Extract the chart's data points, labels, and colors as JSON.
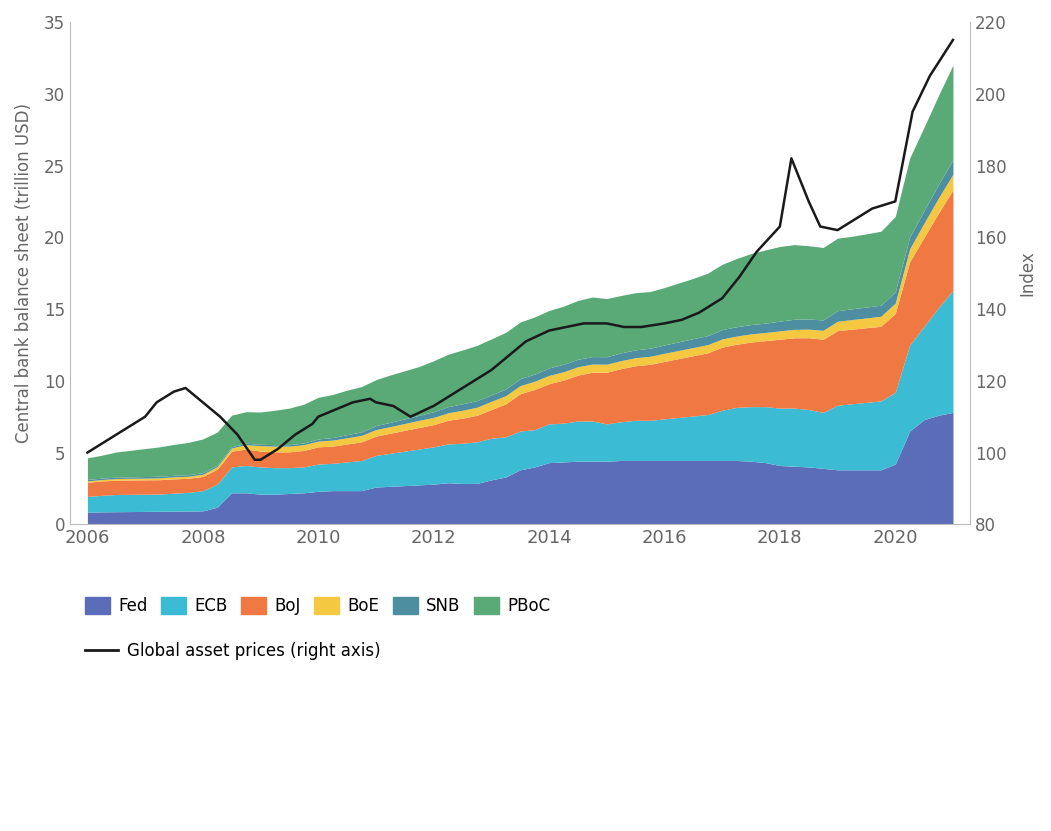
{
  "ylabel_left": "Central bank balance sheet (trillion USD)",
  "ylabel_right": "Index",
  "ylim_left": [
    0,
    35
  ],
  "ylim_right": [
    80,
    220
  ],
  "yticks_left": [
    0,
    5,
    10,
    15,
    20,
    25,
    30,
    35
  ],
  "yticks_right": [
    80,
    100,
    120,
    140,
    160,
    180,
    200,
    220
  ],
  "colors": {
    "Fed": "#5b6db8",
    "ECB": "#3bbcd4",
    "BoJ": "#f07843",
    "BoE": "#f5c842",
    "SNB": "#4d8fa0",
    "PBoC": "#5aaa78"
  },
  "line_color": "#1a1a1a",
  "years": [
    2006.0,
    2006.25,
    2006.5,
    2006.75,
    2007.0,
    2007.25,
    2007.5,
    2007.75,
    2008.0,
    2008.25,
    2008.5,
    2008.75,
    2009.0,
    2009.25,
    2009.5,
    2009.75,
    2010.0,
    2010.25,
    2010.5,
    2010.75,
    2011.0,
    2011.25,
    2011.5,
    2011.75,
    2012.0,
    2012.25,
    2012.5,
    2012.75,
    2013.0,
    2013.25,
    2013.5,
    2013.75,
    2014.0,
    2014.25,
    2014.5,
    2014.75,
    2015.0,
    2015.25,
    2015.5,
    2015.75,
    2016.0,
    2016.25,
    2016.5,
    2016.75,
    2017.0,
    2017.25,
    2017.5,
    2017.75,
    2018.0,
    2018.25,
    2018.5,
    2018.75,
    2019.0,
    2019.25,
    2019.5,
    2019.75,
    2020.0,
    2020.25,
    2020.5,
    2020.75,
    2021.0
  ],
  "Fed": [
    0.85,
    0.87,
    0.88,
    0.89,
    0.9,
    0.91,
    0.92,
    0.93,
    0.94,
    1.2,
    2.2,
    2.2,
    2.1,
    2.1,
    2.15,
    2.2,
    2.3,
    2.35,
    2.35,
    2.35,
    2.6,
    2.65,
    2.7,
    2.75,
    2.8,
    2.9,
    2.85,
    2.85,
    3.1,
    3.3,
    3.8,
    4.0,
    4.3,
    4.35,
    4.4,
    4.4,
    4.4,
    4.45,
    4.45,
    4.45,
    4.45,
    4.45,
    4.45,
    4.45,
    4.45,
    4.45,
    4.4,
    4.3,
    4.1,
    4.05,
    4.0,
    3.9,
    3.8,
    3.8,
    3.8,
    3.8,
    4.2,
    6.5,
    7.3,
    7.6,
    7.8
  ],
  "ECB": [
    1.1,
    1.15,
    1.2,
    1.2,
    1.2,
    1.2,
    1.25,
    1.3,
    1.4,
    1.6,
    1.8,
    1.9,
    1.9,
    1.85,
    1.8,
    1.8,
    1.9,
    1.9,
    2.0,
    2.1,
    2.2,
    2.3,
    2.4,
    2.5,
    2.6,
    2.7,
    2.8,
    2.9,
    2.9,
    2.8,
    2.7,
    2.6,
    2.7,
    2.7,
    2.8,
    2.8,
    2.6,
    2.7,
    2.8,
    2.8,
    2.9,
    3.0,
    3.1,
    3.2,
    3.5,
    3.7,
    3.8,
    3.9,
    4.0,
    4.05,
    4.0,
    3.9,
    4.5,
    4.6,
    4.7,
    4.8,
    5.0,
    6.0,
    6.5,
    7.5,
    8.5
  ],
  "BoJ": [
    0.98,
    1.0,
    1.0,
    1.0,
    1.0,
    1.0,
    1.0,
    0.98,
    1.0,
    1.05,
    1.1,
    1.15,
    1.1,
    1.1,
    1.1,
    1.15,
    1.2,
    1.2,
    1.25,
    1.3,
    1.35,
    1.4,
    1.45,
    1.5,
    1.55,
    1.65,
    1.75,
    1.85,
    2.0,
    2.3,
    2.6,
    2.8,
    2.8,
    3.0,
    3.2,
    3.4,
    3.6,
    3.7,
    3.8,
    3.9,
    4.0,
    4.1,
    4.2,
    4.3,
    4.4,
    4.4,
    4.5,
    4.6,
    4.8,
    4.9,
    5.0,
    5.1,
    5.2,
    5.2,
    5.2,
    5.2,
    5.5,
    5.8,
    6.2,
    6.6,
    7.0
  ],
  "BoE": [
    0.1,
    0.1,
    0.11,
    0.12,
    0.12,
    0.13,
    0.14,
    0.14,
    0.15,
    0.18,
    0.22,
    0.3,
    0.38,
    0.4,
    0.4,
    0.4,
    0.4,
    0.42,
    0.43,
    0.45,
    0.45,
    0.46,
    0.48,
    0.5,
    0.5,
    0.52,
    0.55,
    0.56,
    0.57,
    0.57,
    0.57,
    0.57,
    0.58,
    0.58,
    0.58,
    0.57,
    0.56,
    0.56,
    0.56,
    0.56,
    0.57,
    0.57,
    0.57,
    0.57,
    0.57,
    0.57,
    0.57,
    0.57,
    0.58,
    0.59,
    0.6,
    0.62,
    0.65,
    0.67,
    0.68,
    0.7,
    0.72,
    0.9,
    1.0,
    1.05,
    1.1
  ],
  "SNB": [
    0.1,
    0.1,
    0.1,
    0.1,
    0.11,
    0.11,
    0.11,
    0.11,
    0.11,
    0.1,
    0.09,
    0.1,
    0.1,
    0.1,
    0.1,
    0.12,
    0.15,
    0.18,
    0.22,
    0.25,
    0.28,
    0.3,
    0.32,
    0.35,
    0.4,
    0.43,
    0.45,
    0.46,
    0.45,
    0.46,
    0.48,
    0.5,
    0.52,
    0.52,
    0.52,
    0.52,
    0.52,
    0.54,
    0.55,
    0.56,
    0.58,
    0.6,
    0.62,
    0.63,
    0.65,
    0.65,
    0.65,
    0.65,
    0.68,
    0.7,
    0.71,
    0.72,
    0.74,
    0.75,
    0.76,
    0.77,
    0.78,
    0.82,
    0.88,
    0.94,
    1.0
  ],
  "PBoC": [
    1.5,
    1.6,
    1.75,
    1.85,
    1.95,
    2.05,
    2.15,
    2.25,
    2.35,
    2.3,
    2.2,
    2.2,
    2.25,
    2.4,
    2.55,
    2.7,
    2.9,
    3.0,
    3.1,
    3.15,
    3.2,
    3.3,
    3.35,
    3.4,
    3.55,
    3.65,
    3.75,
    3.85,
    3.9,
    3.95,
    3.95,
    3.98,
    4.0,
    4.05,
    4.1,
    4.15,
    4.05,
    4.0,
    3.98,
    3.95,
    4.0,
    4.1,
    4.2,
    4.35,
    4.55,
    4.75,
    4.95,
    5.1,
    5.2,
    5.2,
    5.1,
    5.05,
    5.05,
    5.05,
    5.1,
    5.15,
    5.25,
    5.5,
    5.8,
    6.2,
    6.6
  ],
  "gap_years": [
    2006.0,
    2006.3,
    2006.6,
    2007.0,
    2007.2,
    2007.5,
    2007.7,
    2008.0,
    2008.3,
    2008.6,
    2008.9,
    2009.0,
    2009.3,
    2009.6,
    2009.9,
    2010.0,
    2010.3,
    2010.6,
    2010.9,
    2011.0,
    2011.3,
    2011.6,
    2012.0,
    2012.3,
    2012.6,
    2013.0,
    2013.3,
    2013.6,
    2014.0,
    2014.3,
    2014.6,
    2015.0,
    2015.3,
    2015.6,
    2016.0,
    2016.3,
    2016.6,
    2017.0,
    2017.3,
    2017.6,
    2018.0,
    2018.2,
    2018.5,
    2018.7,
    2019.0,
    2019.3,
    2019.6,
    2020.0,
    2020.3,
    2020.6,
    2021.0
  ],
  "gap_vals": [
    100,
    103,
    106,
    110,
    114,
    117,
    118,
    114,
    110,
    105,
    98,
    98,
    101,
    105,
    108,
    110,
    112,
    114,
    115,
    114,
    113,
    110,
    113,
    116,
    119,
    123,
    127,
    131,
    134,
    135,
    136,
    136,
    135,
    135,
    136,
    137,
    139,
    143,
    149,
    156,
    163,
    182,
    170,
    163,
    162,
    165,
    168,
    170,
    195,
    205,
    215
  ],
  "legend_labels": [
    "Fed",
    "ECB",
    "BoJ",
    "BoE",
    "SNB",
    "PBoC"
  ],
  "background_color": "#ffffff"
}
